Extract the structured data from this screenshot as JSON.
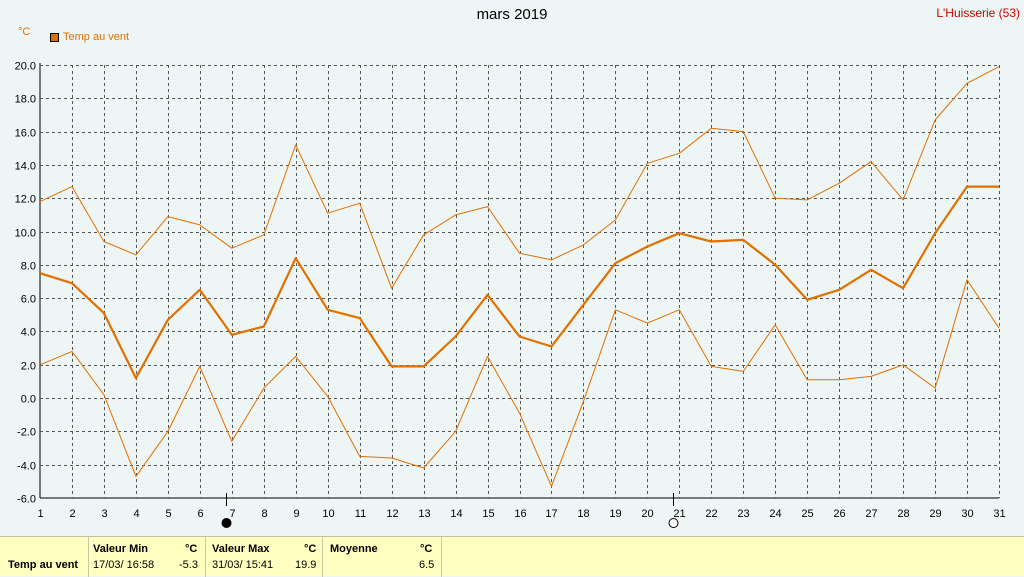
{
  "header": {
    "title": "mars 2019",
    "station": "L'Huisserie (53)",
    "unit": "°C"
  },
  "chart_data": {
    "type": "line",
    "x": [
      1,
      2,
      3,
      4,
      5,
      6,
      7,
      8,
      9,
      10,
      11,
      12,
      13,
      14,
      15,
      16,
      17,
      18,
      19,
      20,
      21,
      22,
      23,
      24,
      25,
      26,
      27,
      28,
      29,
      30,
      31
    ],
    "xlim": [
      1,
      31
    ],
    "ylim": [
      -6,
      20
    ],
    "yticks": [
      "-6.0",
      "-4.0",
      "-2.0",
      "0.0",
      "2.0",
      "4.0",
      "6.0",
      "8.0",
      "10.0",
      "12.0",
      "14.0",
      "16.0",
      "18.0",
      "20.0"
    ],
    "grid": true,
    "legend_position": "top-left",
    "colors": {
      "series": "#e07000"
    },
    "series": [
      {
        "name": "Temp au vent",
        "role": "mean",
        "values": [
          7.5,
          6.9,
          5.1,
          1.2,
          4.7,
          6.5,
          3.8,
          4.3,
          8.4,
          5.3,
          4.8,
          1.9,
          1.9,
          3.7,
          6.2,
          3.7,
          3.1,
          5.6,
          8.1,
          9.1,
          9.9,
          9.4,
          9.5,
          8.0,
          5.9,
          6.5,
          7.7,
          6.6,
          9.9,
          12.7,
          12.7
        ]
      },
      {
        "role": "max",
        "values": [
          11.8,
          12.7,
          9.4,
          8.6,
          10.9,
          10.4,
          9.0,
          9.8,
          15.2,
          11.1,
          11.7,
          6.6,
          9.8,
          11.0,
          11.5,
          8.7,
          8.3,
          9.2,
          10.7,
          14.1,
          14.7,
          16.2,
          16.0,
          12.0,
          11.9,
          12.9,
          14.2,
          11.9,
          16.7,
          18.9,
          19.9
        ]
      },
      {
        "role": "min",
        "values": [
          2.0,
          2.8,
          0.2,
          -4.7,
          -2.0,
          1.9,
          -2.6,
          0.6,
          2.5,
          0.1,
          -3.5,
          -3.6,
          -4.2,
          -2.0,
          2.5,
          -0.9,
          -5.3,
          -0.2,
          5.3,
          4.5,
          5.3,
          1.9,
          1.6,
          4.4,
          1.1,
          1.1,
          1.3,
          2.0,
          0.6,
          7.1,
          4.2
        ]
      }
    ],
    "markers": [
      {
        "day": 7,
        "type": "filled-circle"
      },
      {
        "day": 21,
        "type": "open-circle"
      }
    ]
  },
  "stats": {
    "row_label": "Temp au vent",
    "min": {
      "header": "Valeur Min",
      "unit": "°C",
      "date": "17/03/  16:58",
      "value": "-5.3"
    },
    "max": {
      "header": "Valeur Max",
      "unit": "°C",
      "date": "31/03/  15:41",
      "value": "19.9"
    },
    "mean": {
      "header": "Moyenne",
      "unit": "°C",
      "value": "6.5"
    }
  }
}
